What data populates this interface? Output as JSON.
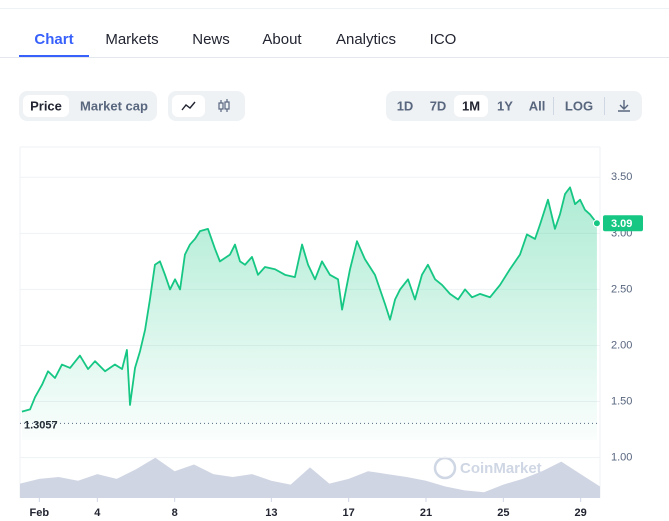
{
  "tabs": {
    "items": [
      "Chart",
      "Markets",
      "News",
      "About",
      "Analytics",
      "ICO"
    ],
    "active": 0
  },
  "metric_toggle": {
    "items": [
      "Price",
      "Market cap"
    ],
    "active": 0
  },
  "range_toggle": {
    "items": [
      "1D",
      "7D",
      "1M",
      "1Y",
      "All"
    ],
    "active": 2
  },
  "log_button": "LOG",
  "watermark": "CoinMarket",
  "chart_data": {
    "type": "line",
    "x": [
      0.1,
      0.52,
      0.78,
      1.14,
      1.45,
      1.81,
      2.17,
      2.59,
      3.1,
      3.52,
      3.88,
      4.4,
      4.91,
      5.28,
      5.53,
      5.69,
      5.95,
      6.21,
      6.47,
      6.72,
      6.98,
      7.24,
      7.5,
      7.76,
      8.02,
      8.28,
      8.53,
      8.79,
      9.05,
      9.31,
      9.72,
      10.09,
      10.34,
      10.86,
      11.12,
      11.38,
      11.64,
      12.0,
      12.31,
      12.67,
      13.19,
      13.71,
      14.22,
      14.59,
      14.9,
      15.26,
      15.62,
      16.03,
      16.45,
      16.66,
      17.07,
      17.43,
      17.84,
      18.36,
      18.88,
      19.14,
      19.4,
      19.66,
      20.07,
      20.43,
      20.79,
      21.1,
      21.47,
      21.83,
      22.24,
      22.66,
      23.02,
      23.38,
      23.79,
      24.31,
      24.83,
      25.34,
      25.86,
      26.22,
      26.64,
      26.9,
      27.31,
      27.67,
      27.93,
      28.19,
      28.45,
      28.71,
      28.97,
      29.22,
      29.48,
      29.84
    ],
    "series": [
      {
        "color": "#16c784",
        "values": [
          1.41,
          1.43,
          1.54,
          1.65,
          1.77,
          1.71,
          1.83,
          1.8,
          1.91,
          1.79,
          1.86,
          1.77,
          1.83,
          1.79,
          1.96,
          1.47,
          1.8,
          1.95,
          2.14,
          2.41,
          2.72,
          2.75,
          2.63,
          2.5,
          2.59,
          2.5,
          2.81,
          2.9,
          2.95,
          3.02,
          3.04,
          2.86,
          2.75,
          2.81,
          2.9,
          2.75,
          2.72,
          2.79,
          2.63,
          2.7,
          2.68,
          2.63,
          2.61,
          2.9,
          2.72,
          2.59,
          2.75,
          2.63,
          2.59,
          2.32,
          2.68,
          2.93,
          2.77,
          2.63,
          2.37,
          2.23,
          2.41,
          2.5,
          2.59,
          2.41,
          2.63,
          2.72,
          2.59,
          2.54,
          2.46,
          2.41,
          2.5,
          2.43,
          2.46,
          2.43,
          2.54,
          2.68,
          2.81,
          2.99,
          2.95,
          3.08,
          3.3,
          3.04,
          3.17,
          3.35,
          3.41,
          3.26,
          3.3,
          3.21,
          3.17,
          3.09
        ]
      },
      {
        "color": "#cfd5e3",
        "axis": "y2",
        "x": [
          0,
          1,
          2,
          3,
          4,
          5,
          6,
          7,
          8,
          9,
          10,
          11,
          12,
          13,
          14,
          15,
          16,
          17,
          18,
          19,
          20,
          21,
          22,
          23,
          24,
          25,
          26,
          27,
          28,
          29,
          30
        ],
        "values": [
          15,
          20,
          22,
          18,
          25,
          20,
          30,
          42,
          28,
          35,
          25,
          22,
          25,
          18,
          14,
          32,
          15,
          20,
          28,
          25,
          22,
          18,
          12,
          8,
          6,
          14,
          20,
          28,
          38,
          25,
          12
        ]
      }
    ],
    "xlim": [
      0,
      30
    ],
    "xticks": [
      {
        "value": 1,
        "label": "Feb"
      },
      4,
      8,
      13,
      17,
      21,
      25,
      29
    ],
    "ylim": [
      0.64,
      3.77
    ],
    "yticks": [
      {
        "value": 3.5,
        "label": "3.50"
      },
      {
        "value": 3,
        "label": "3.00"
      },
      {
        "value": 2.5,
        "label": "2.50"
      },
      {
        "value": 2,
        "label": "2.00"
      },
      {
        "value": 1.5,
        "label": "1.50"
      },
      {
        "value": 1,
        "label": "1.00"
      }
    ],
    "y2lim": [
      0,
      55
    ],
    "reference_line": 1.3057,
    "grid": true
  }
}
